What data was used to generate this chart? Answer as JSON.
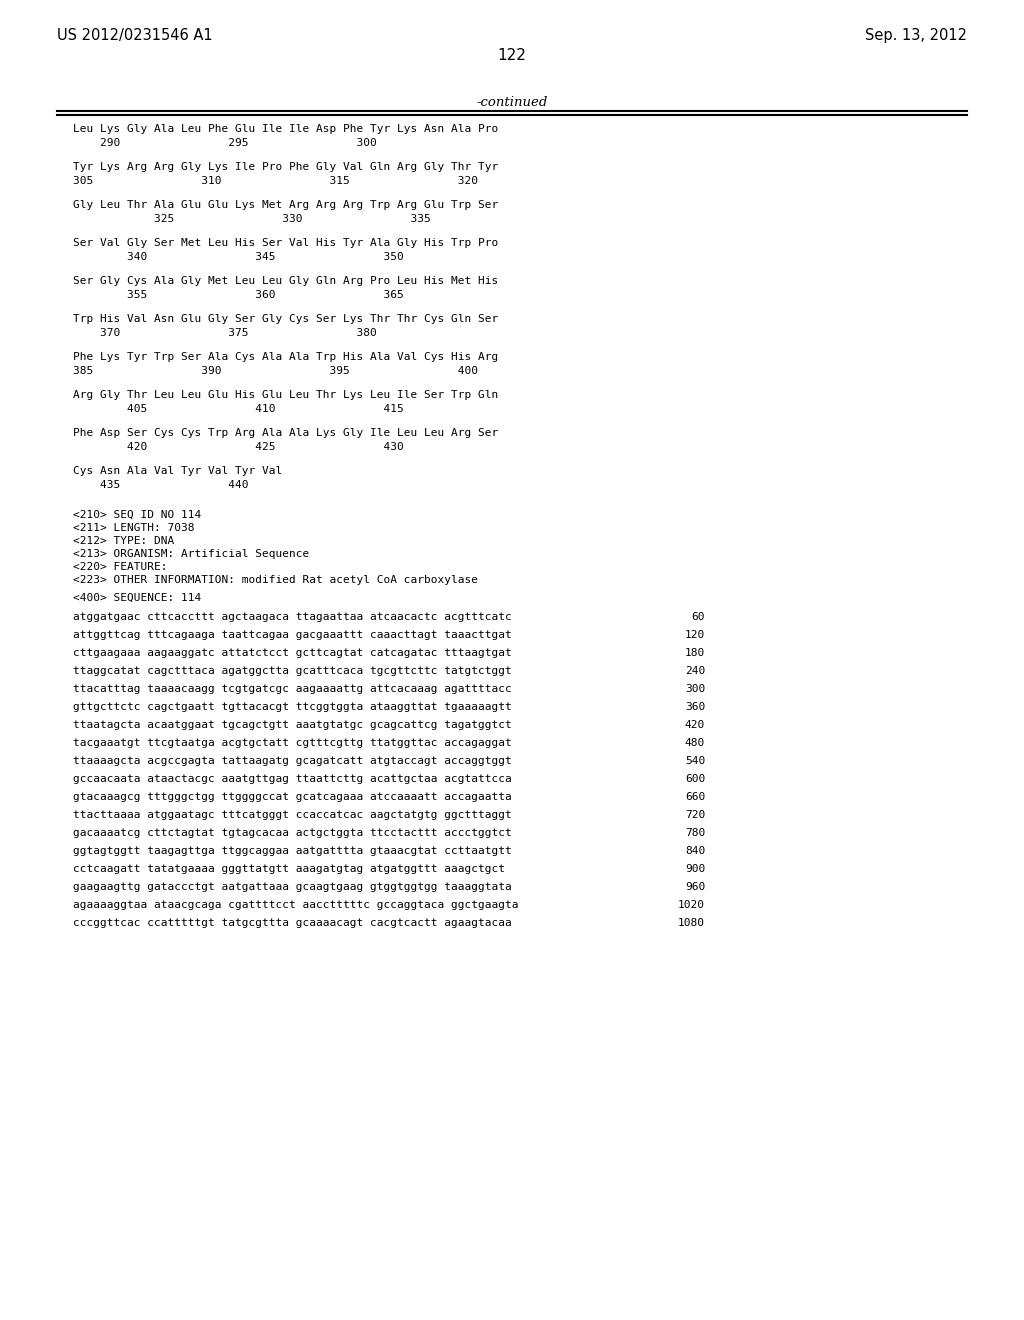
{
  "patent_number": "US 2012/0231546 A1",
  "date": "Sep. 13, 2012",
  "page_number": "122",
  "continued_label": "-continued",
  "background_color": "#ffffff",
  "text_color": "#000000",
  "protein_lines": [
    {
      "seq": "Leu Lys Gly Ala Leu Phe Glu Ile Ile Asp Phe Tyr Lys Asn Ala Pro",
      "nums": "    290                295                300"
    },
    {
      "seq": "Tyr Lys Arg Arg Gly Lys Ile Pro Phe Gly Val Gln Arg Gly Thr Tyr",
      "nums": "305                310                315                320"
    },
    {
      "seq": "Gly Leu Thr Ala Glu Glu Lys Met Arg Arg Arg Trp Arg Glu Trp Ser",
      "nums": "            325                330                335"
    },
    {
      "seq": "Ser Val Gly Ser Met Leu His Ser Val His Tyr Ala Gly His Trp Pro",
      "nums": "        340                345                350"
    },
    {
      "seq": "Ser Gly Cys Ala Gly Met Leu Leu Gly Gln Arg Pro Leu His Met His",
      "nums": "        355                360                365"
    },
    {
      "seq": "Trp His Val Asn Glu Gly Ser Gly Cys Ser Lys Thr Thr Cys Gln Ser",
      "nums": "    370                375                380"
    },
    {
      "seq": "Phe Lys Tyr Trp Ser Ala Cys Ala Ala Trp His Ala Val Cys His Arg",
      "nums": "385                390                395                400"
    },
    {
      "seq": "Arg Gly Thr Leu Leu Glu His Glu Leu Thr Lys Leu Ile Ser Trp Gln",
      "nums": "        405                410                415"
    },
    {
      "seq": "Phe Asp Ser Cys Cys Trp Arg Ala Ala Lys Gly Ile Leu Leu Arg Ser",
      "nums": "        420                425                430"
    },
    {
      "seq": "Cys Asn Ala Val Tyr Val Tyr Val",
      "nums": "    435                440"
    }
  ],
  "metadata_lines": [
    "<210> SEQ ID NO 114",
    "<211> LENGTH: 7038",
    "<212> TYPE: DNA",
    "<213> ORGANISM: Artificial Sequence",
    "<220> FEATURE:",
    "<223> OTHER INFORMATION: modified Rat acetyl CoA carboxylase"
  ],
  "sequence_header": "<400> SEQUENCE: 114",
  "dna_lines": [
    {
      "seq": "atggatgaac cttcaccttt agctaagaca ttagaattaa atcaacactc acgtttcatc",
      "num": "60"
    },
    {
      "seq": "attggttcag tttcagaaga taattcagaa gacgaaattt caaacttagt taaacttgat",
      "num": "120"
    },
    {
      "seq": "cttgaagaaa aagaaggatc attatctcct gcttcagtat catcagatac tttaagtgat",
      "num": "180"
    },
    {
      "seq": "ttaggcatat cagctttaca agatggctta gcatttcaca tgcgttcttc tatgtctggt",
      "num": "240"
    },
    {
      "seq": "ttacatttag taaaacaagg tcgtgatcgc aagaaaattg attcacaaag agattttacc",
      "num": "300"
    },
    {
      "seq": "gttgcttctc cagctgaatt tgttacacgt ttcggtggta ataaggttat tgaaaaagtt",
      "num": "360"
    },
    {
      "seq": "ttaatagcta acaatggaat tgcagctgtt aaatgtatgc gcagcattcg tagatggtct",
      "num": "420"
    },
    {
      "seq": "tacgaaatgt ttcgtaatga acgtgctatt cgtttcgttg ttatggttac accagaggat",
      "num": "480"
    },
    {
      "seq": "ttaaaagcta acgccgagta tattaagatg gcagatcatt atgtaccagt accaggtggt",
      "num": "540"
    },
    {
      "seq": "gccaacaata ataactacgc aaatgttgag ttaattcttg acattgctaa acgtattcca",
      "num": "600"
    },
    {
      "seq": "gtacaaagcg tttgggctgg ttggggccat gcatcagaaa atccaaaatt accagaatta",
      "num": "660"
    },
    {
      "seq": "ttacttaaaa atggaatagc tttcatgggt ccaccatcac aagctatgtg ggctttaggt",
      "num": "720"
    },
    {
      "seq": "gacaaaatcg cttctagtat tgtagcacaa actgctggta ttcctacttt accctggtct",
      "num": "780"
    },
    {
      "seq": "ggtagtggtt taagagttga ttggcaggaa aatgatttta gtaaacgtat ccttaatgtt",
      "num": "840"
    },
    {
      "seq": "cctcaagatt tatatgaaaa gggttatgtt aaagatgtag atgatggttt aaagctgct",
      "num": "900"
    },
    {
      "seq": "gaagaagttg gataccctgt aatgattaaa gcaagtgaag gtggtggtgg taaaggtata",
      "num": "960"
    },
    {
      "seq": "agaaaaggtaa ataacgcaga cgattttcct aacctttttc gccaggtaca ggctgaagta",
      "num": "1020"
    },
    {
      "seq": "cccggttcac ccatttttgt tatgcgttta gcaaaacagt cacgtcactt agaagtacaa",
      "num": "1080"
    }
  ]
}
